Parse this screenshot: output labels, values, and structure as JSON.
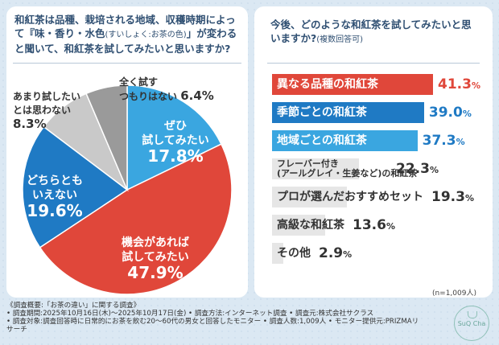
{
  "pie": {
    "question": "和紅茶は品種、栽培される地域、収穫時期によって『味・香り・水色」が変わると聞いて、和紅茶を試してみたいと思いますか?",
    "question_parts": {
      "a": "和紅茶は品種、栽培される地域、収穫時期に",
      "b": "よって『味・香り・水色",
      "small": "(すいしょく:お茶の色)",
      "c": "」が変わる",
      "d": "と聞いて、和紅茶を試してみたいと思いますか?"
    },
    "slices": [
      {
        "label": "ぜひ試してみたい",
        "line1": "ぜひ",
        "line2": "試してみたい",
        "value": 17.8,
        "pct": "17.8%",
        "color": "#3aa6e0"
      },
      {
        "label": "機会があれば試してみたい",
        "line1": "機会があれば",
        "line2": "試してみたい",
        "value": 47.9,
        "pct": "47.9%",
        "color": "#e0473a"
      },
      {
        "label": "どちらともいえない",
        "line1": "どちらとも",
        "line2": "いえない",
        "value": 19.6,
        "pct": "19.6%",
        "color": "#1f7ac4"
      },
      {
        "label": "あまり試したいとは思わない",
        "line1": "あまり試したい",
        "line2": "とは思わない",
        "value": 8.3,
        "pct": "8.3%",
        "color": "#c9c9c9"
      },
      {
        "label": "全く試すつもりはない",
        "line1": "全く試す",
        "line2": "つもりはない",
        "value": 6.4,
        "pct": "6.4%",
        "color": "#9a9a9a"
      }
    ]
  },
  "chart_data": [
    {
      "type": "pie",
      "title": "和紅茶は品種、栽培される地域、収穫時期によって『味・香り・水色(すいしょく:お茶の色)」が変わると聞いて、和紅茶を試してみたいと思いますか?",
      "categories": [
        "ぜひ試してみたい",
        "機会があれば試してみたい",
        "どちらともいえない",
        "あまり試したいとは思わない",
        "全く試すつもりはない"
      ],
      "values": [
        17.8,
        47.9,
        19.6,
        8.3,
        6.4
      ]
    },
    {
      "type": "bar",
      "title": "今後、どのような和紅茶を試してみたいと思いますか?(複数回答可)",
      "categories": [
        "異なる品種の和紅茶",
        "季節ごとの和紅茶",
        "地域ごとの和紅茶",
        "フレーバー付き(アールグレイ・生姜など)の和紅茶",
        "プロが選んだおすすめセット",
        "高級な和紅茶",
        "その他"
      ],
      "values": [
        41.3,
        39.0,
        37.3,
        22.3,
        19.3,
        13.6,
        2.9
      ]
    }
  ],
  "bars": {
    "question_main": "今後、どのような和紅茶を試してみたいと思いますか?",
    "question_note": "(複数回答可)",
    "items": [
      {
        "label": "異なる品種の和紅茶",
        "num": "41.3",
        "color": "#e0473a",
        "text": "#fff",
        "val_color": "#e0473a",
        "small": false
      },
      {
        "label": "季節ごとの和紅茶",
        "num": "39.0",
        "color": "#1f7ac4",
        "text": "#fff",
        "val_color": "#1f7ac4",
        "small": false
      },
      {
        "label": "地域ごとの和紅茶",
        "num": "37.3",
        "color": "#3aa6e0",
        "text": "#fff",
        "val_color": "#1f7ac4",
        "small": false
      },
      {
        "label": "フレーバー付き",
        "label2": "(アールグレイ・生姜など)の和紅茶",
        "num": "22.3",
        "color": "#e6e6e6",
        "text": "#333",
        "val_color": "#333",
        "small": true
      },
      {
        "label": "プロが選んだおすすめセット",
        "num": "19.3",
        "color": "#e6e6e6",
        "text": "#333",
        "val_color": "#333",
        "small": false
      },
      {
        "label": "高級な和紅茶",
        "num": "13.6",
        "color": "#e6e6e6",
        "text": "#333",
        "val_color": "#333",
        "small": false
      },
      {
        "label": "その他",
        "num": "2.9",
        "color": "#e6e6e6",
        "text": "#333",
        "val_color": "#333",
        "small": false
      }
    ],
    "unit": "%",
    "n": "(n=1,009人)"
  },
  "footer": {
    "line1": "《調査概要:「お茶の違い」に関する調査》",
    "line2": "• 調査期間:2025年10月16日(木)〜2025年10月17日(金) • 調査方法:インターネット調査 • 調査元:株式会社サクラス",
    "line3": "• 調査対象:調査回答時に日常的にお茶を飲む20〜60代の男女と回答したモニター • 調査人数:1,009人 • モニター提供元:PRIZMAリサーチ"
  },
  "logo": {
    "text": "SuQ Cha"
  }
}
